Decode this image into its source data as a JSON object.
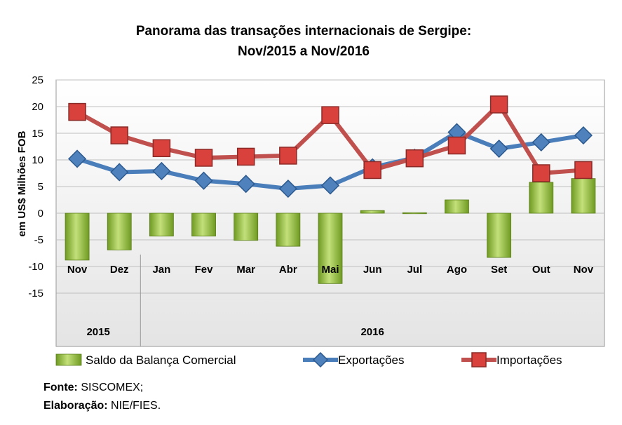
{
  "chart_data": {
    "type": "bar+line",
    "title_line1": "Panorama das transações internacionais de Sergipe:",
    "title_line2": "Nov/2015 a Nov/2016",
    "ylabel": "em US$ Milhões FOB",
    "ylim": [
      -15,
      25
    ],
    "yticks": [
      25,
      20,
      15,
      10,
      5,
      0,
      -5,
      -10,
      -15
    ],
    "categories": [
      "Nov",
      "Dez",
      "Jan",
      "Fev",
      "Mar",
      "Abr",
      "Mai",
      "Jun",
      "Jul",
      "Ago",
      "Set",
      "Out",
      "Nov"
    ],
    "year_groups": [
      {
        "label": "2015",
        "count": 2
      },
      {
        "label": "2016",
        "count": 11
      }
    ],
    "series": [
      {
        "name": "Saldo da Balança Comercial",
        "kind": "bar",
        "color": "#8fb43a",
        "values": [
          -8.8,
          -6.9,
          -4.3,
          -4.3,
          -5.1,
          -6.2,
          -13.2,
          0.5,
          0.1,
          2.5,
          -8.3,
          5.8,
          6.5
        ]
      },
      {
        "name": "Exportações",
        "kind": "line",
        "color": "#4a7ebb",
        "values": [
          10.2,
          7.7,
          7.9,
          6.1,
          5.5,
          4.6,
          5.2,
          8.6,
          10.4,
          15.2,
          12.1,
          13.3,
          14.6
        ]
      },
      {
        "name": "Importações",
        "kind": "line",
        "color": "#c0504d",
        "values": [
          19.0,
          14.6,
          12.2,
          10.4,
          10.6,
          10.8,
          18.4,
          8.1,
          10.3,
          12.7,
          20.4,
          7.5,
          8.1
        ]
      }
    ]
  },
  "footer": {
    "source_label": "Fonte:",
    "source_value": " SISCOMEX;",
    "elab_label": "Elaboração:",
    "elab_value": " NIE/FIES."
  }
}
